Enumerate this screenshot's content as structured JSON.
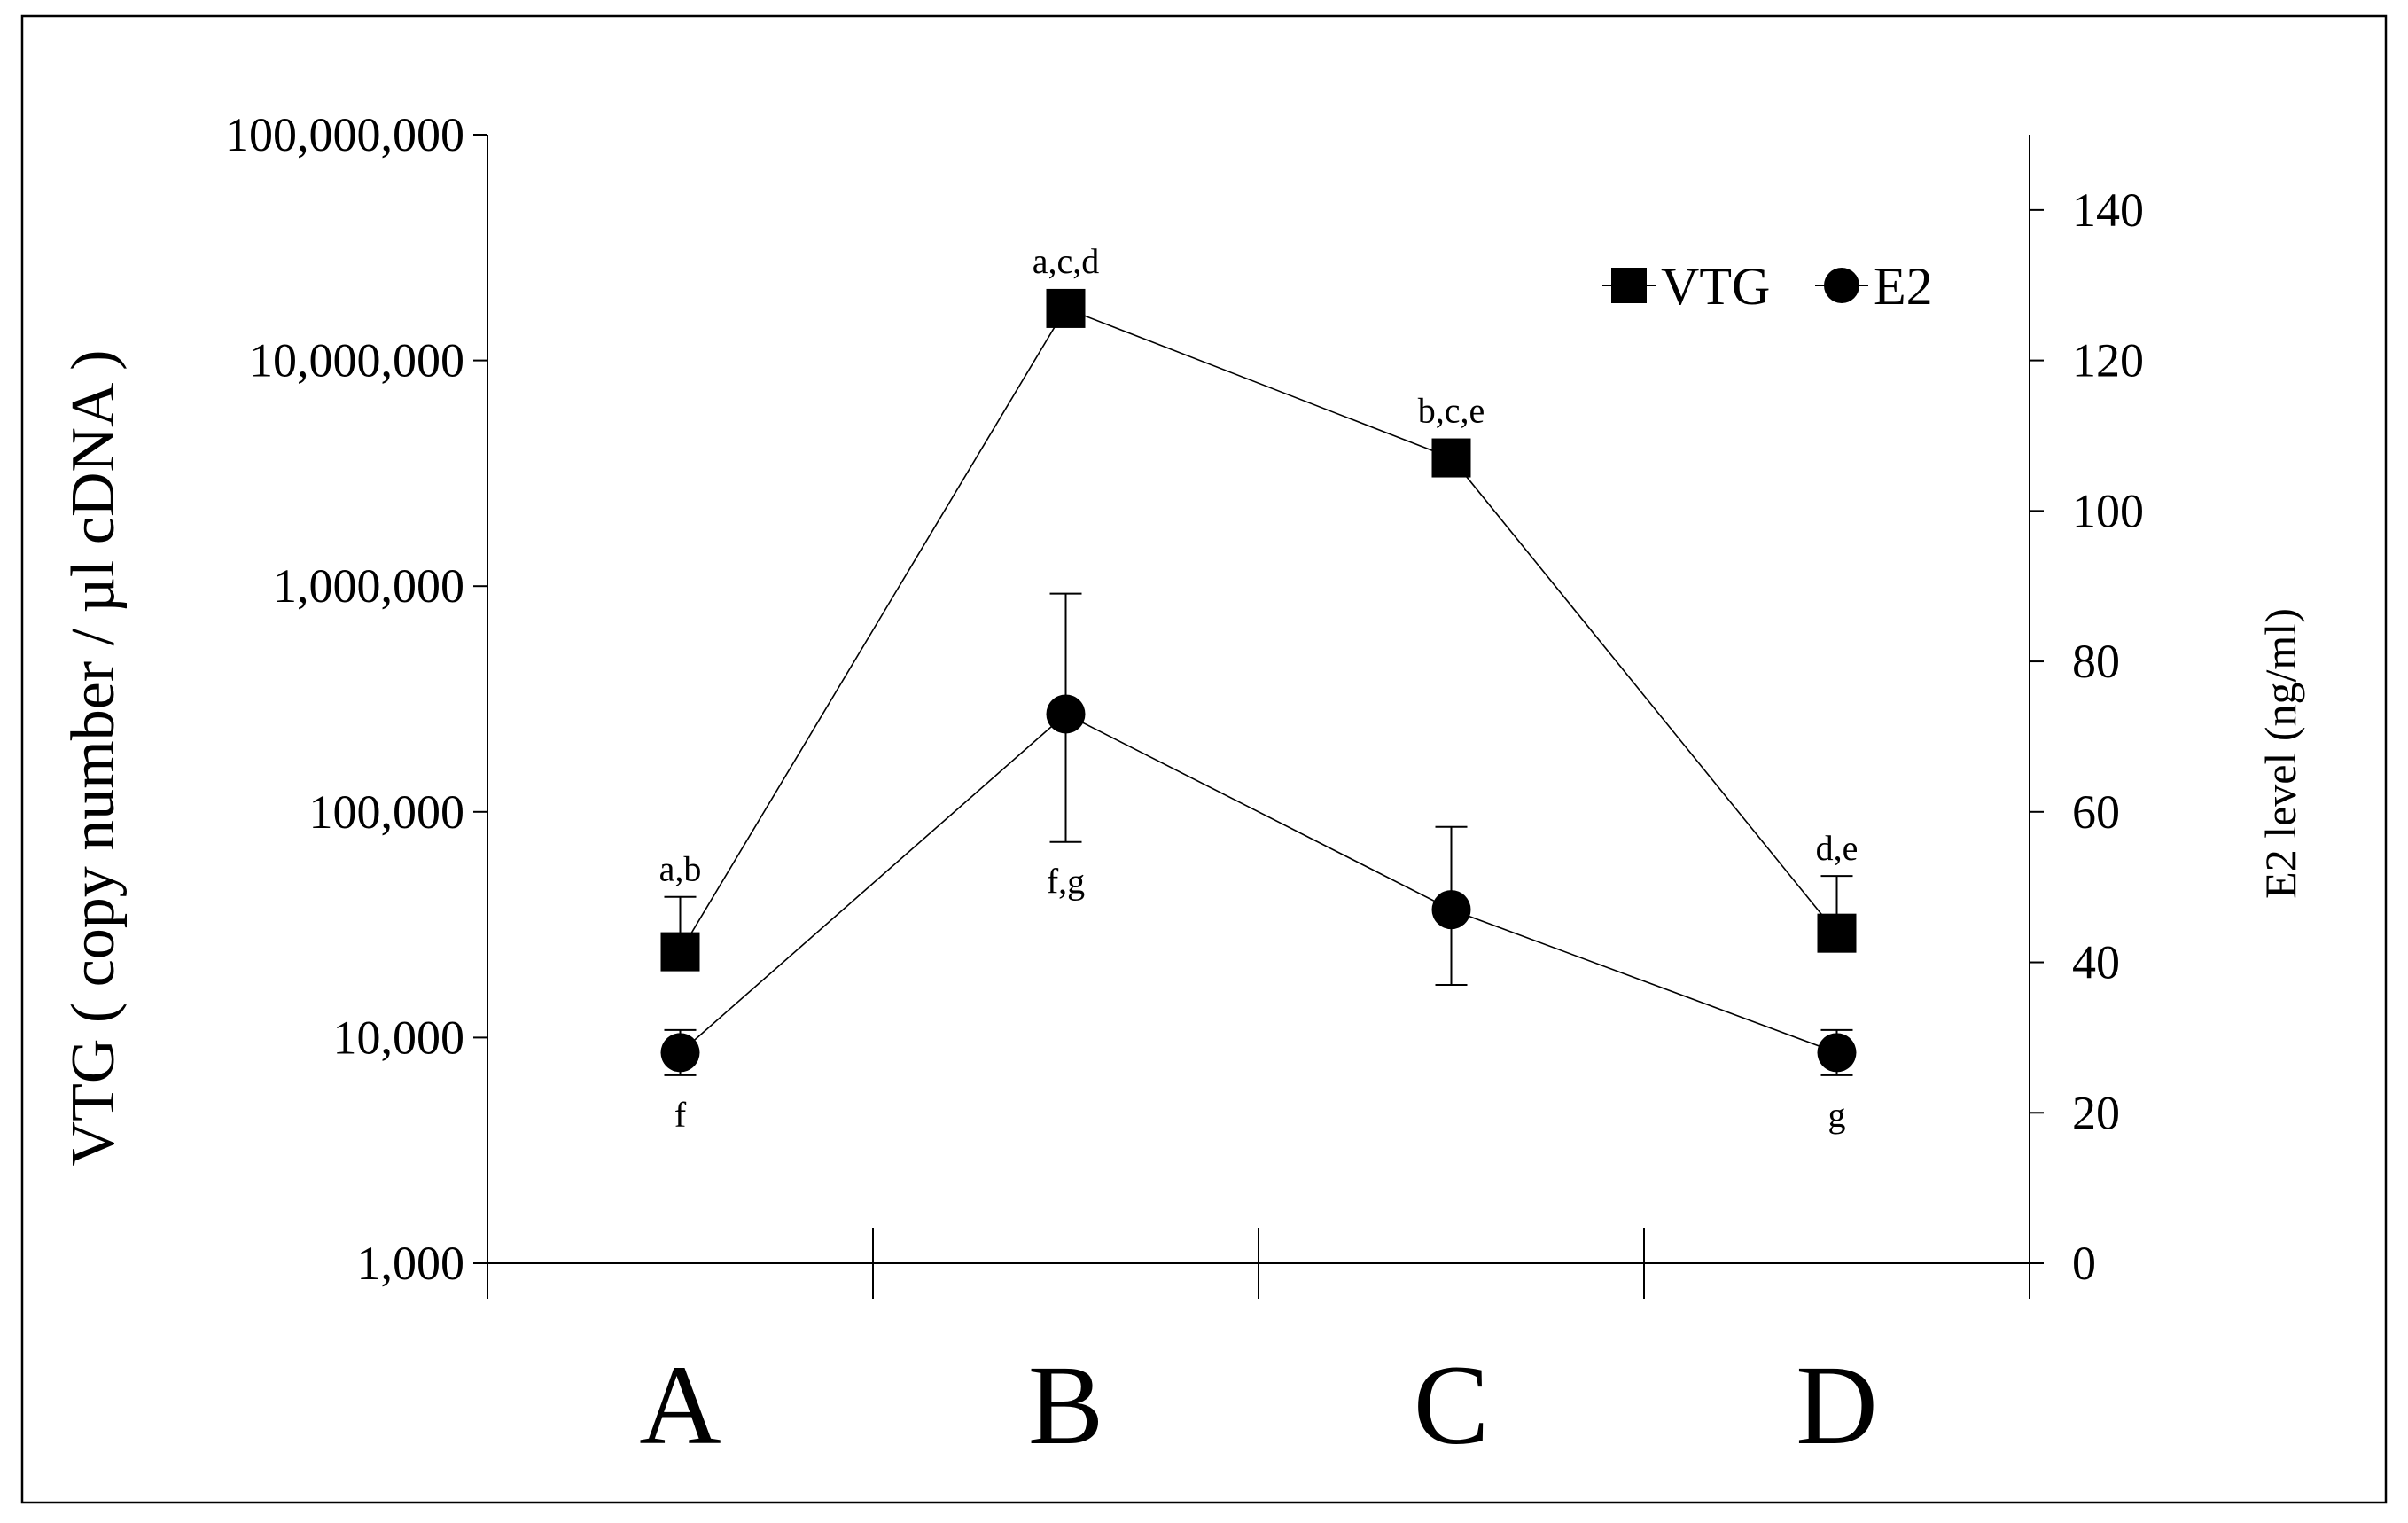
{
  "chart_data": {
    "type": "line",
    "categories": [
      "A",
      "B",
      "C",
      "D"
    ],
    "ylabel_left": "VTG ( copy number / µl cDNA )",
    "ylabel_right": "E2 level (ng/ml)",
    "y_left": {
      "scale": "log",
      "lim": [
        1000,
        100000000
      ],
      "ticks": [
        1000,
        10000,
        100000,
        1000000,
        10000000,
        100000000
      ],
      "tick_labels": [
        "1,000",
        "10,000",
        "100,000",
        "1,000,000",
        "10,000,000",
        "100,000,000"
      ]
    },
    "y_right": {
      "scale": "linear",
      "lim": [
        0,
        150
      ],
      "ticks": [
        0,
        20,
        40,
        60,
        80,
        100,
        120,
        140
      ],
      "tick_labels": [
        "0",
        "20",
        "40",
        "60",
        "80",
        "100",
        "120",
        "140"
      ]
    },
    "series": [
      {
        "name": "VTG",
        "axis": "left",
        "marker": "square",
        "values": [
          24000,
          17000000,
          3700000,
          29000
        ],
        "error_upper": [
          42000,
          null,
          null,
          52000
        ],
        "error_lower": [
          null,
          null,
          null,
          null
        ],
        "labels": [
          "a,b",
          "a,c,d",
          "b,c,e",
          "d,e"
        ],
        "label_position": "above"
      },
      {
        "name": "E2",
        "axis": "right",
        "marker": "circle",
        "values": [
          28,
          73,
          47,
          28
        ],
        "error_upper": [
          31,
          89,
          58,
          31
        ],
        "error_lower": [
          25,
          56,
          37,
          25
        ],
        "labels": [
          "f",
          "f,g",
          "",
          "g"
        ],
        "label_position": "below"
      }
    ],
    "legend": {
      "position": "top-right"
    }
  }
}
